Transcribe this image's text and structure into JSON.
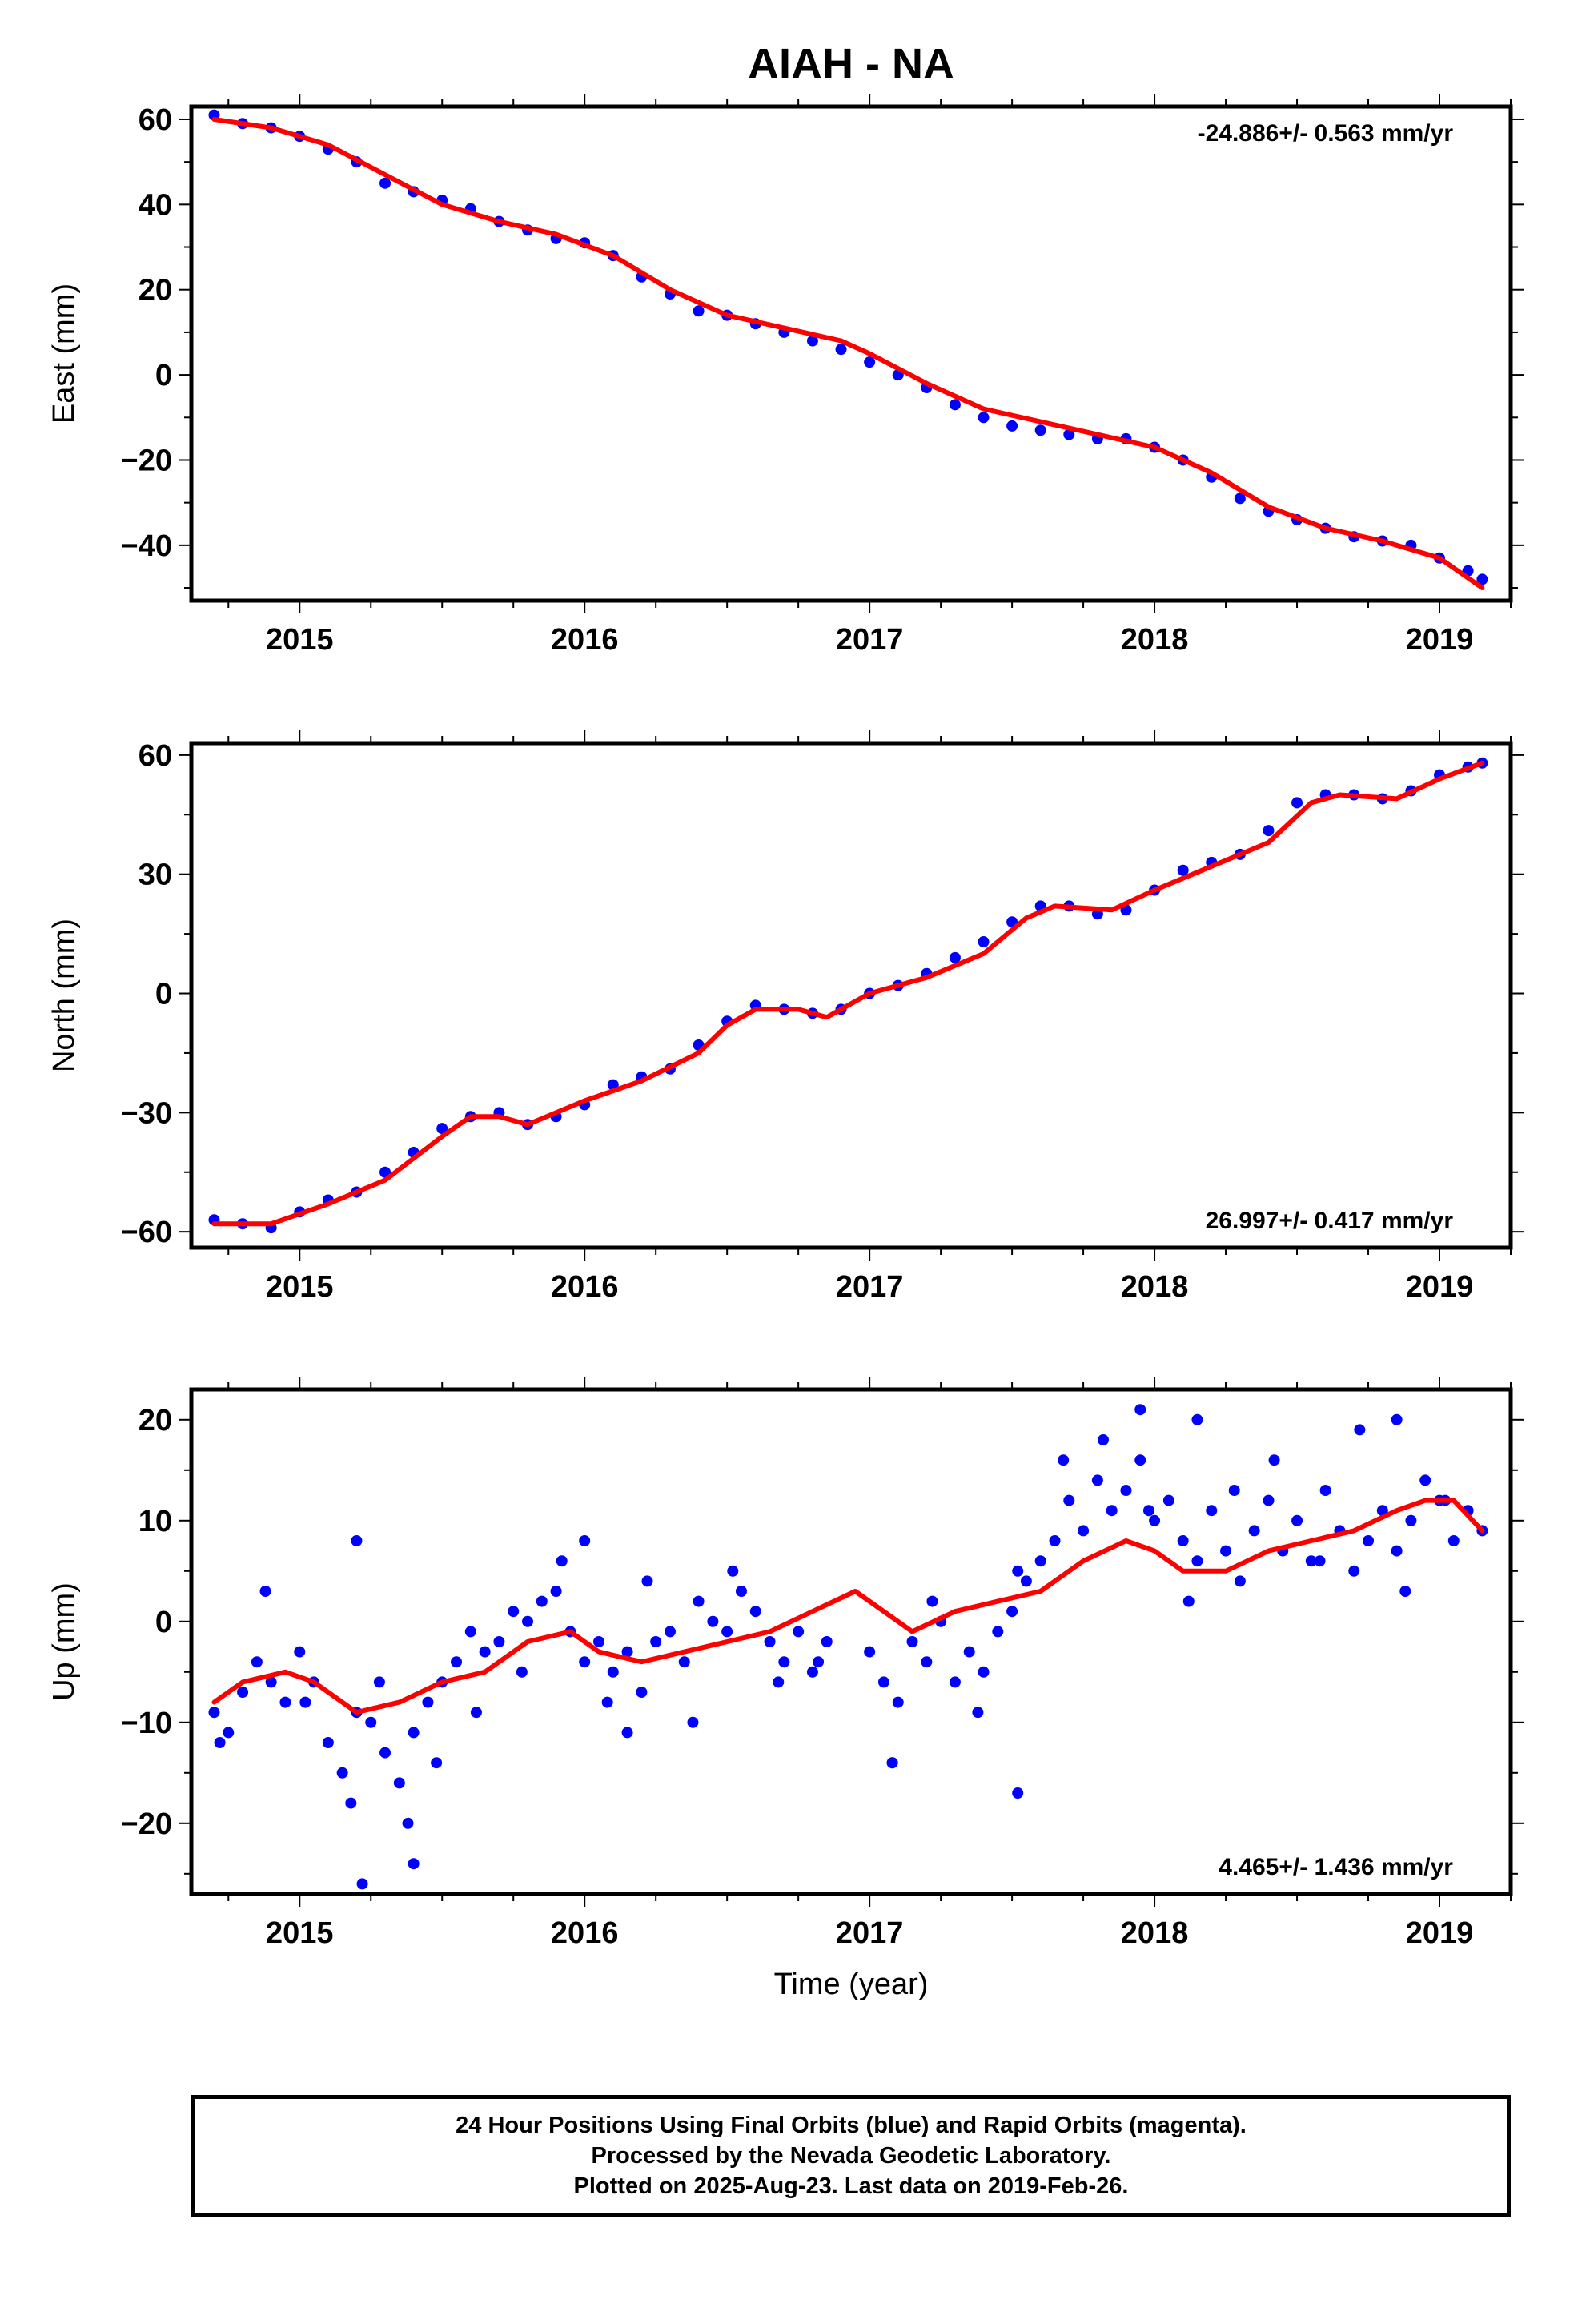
{
  "figure": {
    "title": "AIAH - NA",
    "xlabel": "Time (year)"
  },
  "chart_data": [
    {
      "type": "scatter",
      "panel": "east",
      "ylabel": "East (mm)",
      "rate_text": "-24.886+/- 0.563 mm/yr",
      "xlim": [
        2014.62,
        2019.25
      ],
      "ylim": [
        -53,
        63
      ],
      "xticks": [
        2015,
        2016,
        2017,
        2018,
        2019
      ],
      "yticks": [
        -40,
        -20,
        0,
        20,
        40,
        60
      ],
      "series": [
        {
          "kind": "scatter",
          "color": "#0000ff",
          "x": [
            2014.7,
            2014.8,
            2014.9,
            2015.0,
            2015.1,
            2015.2,
            2015.3,
            2015.4,
            2015.5,
            2015.6,
            2015.7,
            2015.8,
            2015.9,
            2016.0,
            2016.1,
            2016.2,
            2016.3,
            2016.4,
            2016.5,
            2016.6,
            2016.7,
            2016.8,
            2016.9,
            2017.0,
            2017.1,
            2017.2,
            2017.3,
            2017.4,
            2017.5,
            2017.6,
            2017.7,
            2017.8,
            2017.9,
            2018.0,
            2018.1,
            2018.2,
            2018.3,
            2018.4,
            2018.5,
            2018.6,
            2018.7,
            2018.8,
            2018.9,
            2019.0,
            2019.1,
            2019.15
          ],
          "y": [
            61,
            59,
            58,
            56,
            53,
            50,
            45,
            43,
            41,
            39,
            36,
            34,
            32,
            31,
            28,
            23,
            19,
            15,
            14,
            12,
            10,
            8,
            6,
            3,
            0,
            -3,
            -7,
            -10,
            -12,
            -13,
            -14,
            -15,
            -15,
            -17,
            -20,
            -24,
            -29,
            -32,
            -34,
            -36,
            -38,
            -39,
            -40,
            -43,
            -46,
            -48
          ]
        },
        {
          "kind": "line",
          "color": "#ff0000",
          "x": [
            2014.7,
            2014.9,
            2015.1,
            2015.3,
            2015.5,
            2015.7,
            2015.9,
            2016.1,
            2016.3,
            2016.5,
            2016.7,
            2016.9,
            2017.0,
            2017.2,
            2017.4,
            2017.6,
            2017.8,
            2018.0,
            2018.2,
            2018.4,
            2018.6,
            2018.8,
            2019.0,
            2019.15
          ],
          "y": [
            60,
            58,
            54,
            47,
            40,
            36,
            33,
            28,
            20,
            14,
            11,
            8,
            5,
            -2,
            -8,
            -11,
            -14,
            -17,
            -23,
            -31,
            -36,
            -39,
            -43,
            -50
          ]
        }
      ]
    },
    {
      "type": "scatter",
      "panel": "north",
      "ylabel": "North (mm)",
      "rate_text": "26.997+/- 0.417 mm/yr",
      "xlim": [
        2014.62,
        2019.25
      ],
      "ylim": [
        -64,
        63
      ],
      "xticks": [
        2015,
        2016,
        2017,
        2018,
        2019
      ],
      "yticks": [
        -60,
        -30,
        0,
        30,
        60
      ],
      "series": [
        {
          "kind": "scatter",
          "color": "#0000ff",
          "x": [
            2014.7,
            2014.8,
            2014.9,
            2015.0,
            2015.1,
            2015.2,
            2015.3,
            2015.4,
            2015.5,
            2015.6,
            2015.7,
            2015.8,
            2015.9,
            2016.0,
            2016.1,
            2016.2,
            2016.3,
            2016.4,
            2016.5,
            2016.6,
            2016.7,
            2016.8,
            2016.9,
            2017.0,
            2017.1,
            2017.2,
            2017.3,
            2017.4,
            2017.5,
            2017.6,
            2017.7,
            2017.8,
            2017.9,
            2018.0,
            2018.1,
            2018.2,
            2018.3,
            2018.4,
            2018.5,
            2018.6,
            2018.7,
            2018.8,
            2018.9,
            2019.0,
            2019.1,
            2019.15
          ],
          "y": [
            -57,
            -58,
            -59,
            -55,
            -52,
            -50,
            -45,
            -40,
            -34,
            -31,
            -30,
            -33,
            -31,
            -28,
            -23,
            -21,
            -19,
            -13,
            -7,
            -3,
            -4,
            -5,
            -4,
            0,
            2,
            5,
            9,
            13,
            18,
            22,
            22,
            20,
            21,
            26,
            31,
            33,
            35,
            41,
            48,
            50,
            50,
            49,
            51,
            55,
            57,
            58
          ]
        },
        {
          "kind": "line",
          "color": "#ff0000",
          "x": [
            2014.7,
            2014.9,
            2015.1,
            2015.3,
            2015.5,
            2015.6,
            2015.7,
            2015.8,
            2016.0,
            2016.2,
            2016.4,
            2016.5,
            2016.6,
            2016.75,
            2016.85,
            2017.0,
            2017.2,
            2017.4,
            2017.55,
            2017.65,
            2017.85,
            2018.0,
            2018.2,
            2018.4,
            2018.55,
            2018.65,
            2018.85,
            2019.0,
            2019.15
          ],
          "y": [
            -58,
            -58,
            -53,
            -47,
            -36,
            -31,
            -31,
            -33,
            -27,
            -22,
            -15,
            -8,
            -4,
            -4,
            -6,
            0,
            4,
            10,
            19,
            22,
            21,
            26,
            32,
            38,
            48,
            50,
            49,
            54,
            58
          ]
        }
      ]
    },
    {
      "type": "scatter",
      "panel": "up",
      "ylabel": "Up (mm)",
      "rate_text": "4.465+/- 1.436 mm/yr",
      "xlim": [
        2014.62,
        2019.25
      ],
      "ylim": [
        -27,
        23
      ],
      "xticks": [
        2015,
        2016,
        2017,
        2018,
        2019
      ],
      "yticks": [
        -20,
        -10,
        0,
        10,
        20
      ],
      "series": [
        {
          "kind": "scatter",
          "color": "#0000ff",
          "x": [
            2014.7,
            2014.75,
            2014.8,
            2014.85,
            2014.9,
            2014.95,
            2015.0,
            2015.05,
            2015.1,
            2015.15,
            2015.2,
            2015.25,
            2015.3,
            2015.35,
            2015.4,
            2015.45,
            2015.5,
            2015.55,
            2015.6,
            2015.65,
            2015.7,
            2015.75,
            2015.8,
            2015.85,
            2015.9,
            2015.95,
            2016.0,
            2016.05,
            2016.1,
            2016.15,
            2016.2,
            2016.25,
            2016.3,
            2016.35,
            2016.4,
            2016.45,
            2016.5,
            2016.55,
            2016.6,
            2016.65,
            2016.7,
            2016.75,
            2016.8,
            2016.85,
            2017.0,
            2017.05,
            2017.1,
            2017.15,
            2017.2,
            2017.25,
            2017.3,
            2017.35,
            2017.4,
            2017.45,
            2017.5,
            2017.55,
            2017.6,
            2017.65,
            2017.7,
            2017.75,
            2017.8,
            2017.85,
            2017.9,
            2017.95,
            2018.0,
            2018.05,
            2018.1,
            2018.15,
            2018.2,
            2018.25,
            2018.3,
            2018.35,
            2018.4,
            2018.45,
            2018.5,
            2018.55,
            2018.6,
            2018.65,
            2018.7,
            2018.75,
            2018.8,
            2018.85,
            2018.9,
            2018.95,
            2019.0,
            2019.05,
            2019.1,
            2019.15,
            2014.72,
            2014.88,
            2015.02,
            2015.18,
            2015.28,
            2015.38,
            2015.48,
            2015.62,
            2015.78,
            2015.92,
            2016.08,
            2016.22,
            2016.38,
            2016.52,
            2016.68,
            2016.82,
            2017.08,
            2017.22,
            2017.38,
            2017.52,
            2017.68,
            2017.82,
            2017.98,
            2018.12,
            2018.28,
            2018.42,
            2018.58,
            2018.72,
            2018.88,
            2019.02,
            2015.22,
            2017.08,
            2017.52,
            2015.4,
            2015.2,
            2017.95,
            2018.15,
            2018.85,
            2016.0,
            2016.15
          ],
          "y": [
            -9,
            -11,
            -7,
            -4,
            -6,
            -8,
            -3,
            -6,
            -12,
            -15,
            -9,
            -10,
            -13,
            -16,
            -11,
            -8,
            -6,
            -4,
            -1,
            -3,
            -2,
            1,
            0,
            2,
            3,
            -1,
            -4,
            -2,
            -5,
            -3,
            -7,
            -2,
            -1,
            -4,
            2,
            0,
            -1,
            3,
            1,
            -2,
            -4,
            -1,
            -5,
            -2,
            -3,
            -6,
            -8,
            -2,
            -4,
            0,
            -6,
            -3,
            -5,
            -1,
            1,
            4,
            6,
            8,
            12,
            9,
            14,
            11,
            13,
            16,
            10,
            12,
            8,
            6,
            11,
            7,
            4,
            9,
            12,
            7,
            10,
            6,
            13,
            9,
            5,
            8,
            11,
            7,
            10,
            14,
            12,
            8,
            11,
            9,
            -12,
            3,
            -8,
            -18,
            -6,
            -20,
            -14,
            -9,
            -5,
            6,
            -8,
            4,
            -10,
            5,
            -6,
            -4,
            -14,
            2,
            -9,
            5,
            16,
            18,
            11,
            2,
            13,
            16,
            6,
            19,
            3,
            12,
            -26,
            -14,
            -17,
            -24,
            8,
            21,
            20,
            20,
            8,
            -11
          ]
        },
        {
          "kind": "line",
          "color": "#ff0000",
          "x": [
            2014.7,
            2014.8,
            2014.95,
            2015.05,
            2015.2,
            2015.35,
            2015.5,
            2015.65,
            2015.8,
            2015.95,
            2016.05,
            2016.2,
            2016.35,
            2016.5,
            2016.65,
            2016.8,
            2016.95,
            2017.05,
            2017.15,
            2017.3,
            2017.45,
            2017.6,
            2017.75,
            2017.9,
            2018.0,
            2018.1,
            2018.25,
            2018.4,
            2018.55,
            2018.7,
            2018.85,
            2018.95,
            2019.05,
            2019.15
          ],
          "y": [
            -8,
            -6,
            -5,
            -6,
            -9,
            -8,
            -6,
            -5,
            -2,
            -1,
            -3,
            -4,
            -3,
            -2,
            -1,
            1,
            3,
            1,
            -1,
            1,
            2,
            3,
            6,
            8,
            7,
            5,
            5,
            7,
            8,
            9,
            11,
            12,
            12,
            9
          ]
        }
      ]
    }
  ],
  "footer": {
    "lines": [
      "24 Hour Positions Using Final Orbits (blue) and Rapid Orbits (magenta).",
      "Processed by the Nevada Geodetic Laboratory.",
      "Plotted on 2025-Aug-23. Last data on 2019-Feb-26."
    ]
  }
}
